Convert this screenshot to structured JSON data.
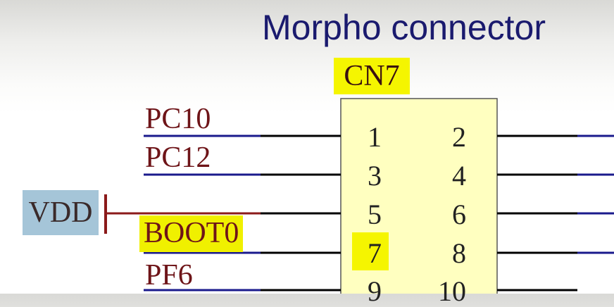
{
  "title": "Morpho connector",
  "connector": {
    "ref": "CN7",
    "pins_left": [
      "1",
      "3",
      "5",
      "7",
      "9"
    ],
    "pins_right": [
      "2",
      "4",
      "6",
      "8",
      "10"
    ]
  },
  "nets": {
    "pc10": "PC10",
    "pc12": "PC12",
    "vdd": "VDD",
    "boot0": "BOOT0",
    "pf6": "PF6"
  },
  "colors": {
    "body_fill": "#ffffc0",
    "wire": "#000000",
    "net_line": "#1a1a8c",
    "power_symbol": "#8b1a1a",
    "highlight": "#f5f500",
    "vdd_highlight": "#a5c5d8"
  }
}
